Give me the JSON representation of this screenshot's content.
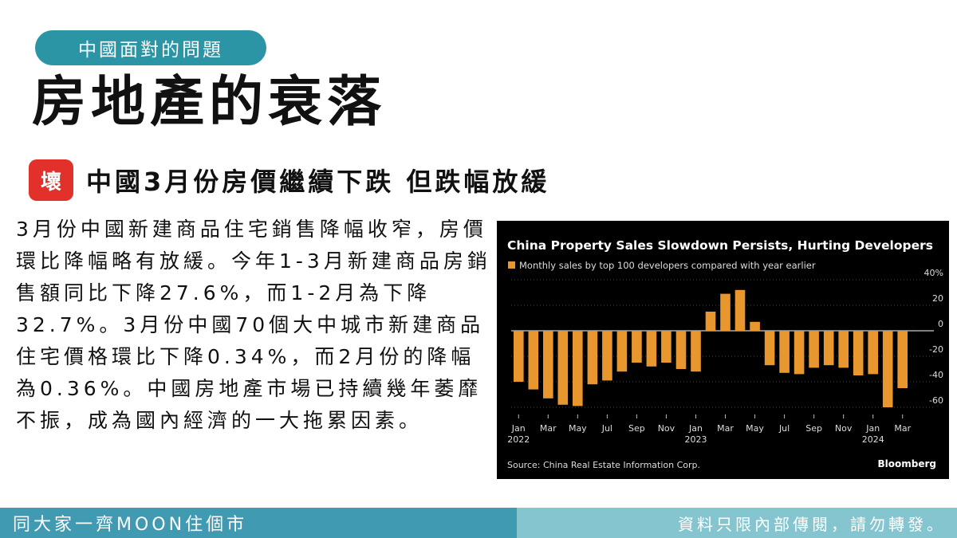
{
  "header": {
    "tag": "中國面對的問題",
    "title": "房地產的衰落",
    "badge": "壞",
    "subtitle": "中國3月份房價繼續下跌 但跌幅放緩"
  },
  "article": {
    "text": "3月份中國新建商品住宅銷售降幅收窄，房價環比降幅略有放緩。今年1-3月新建商品房銷售額同比下降27.6%，而1-2月為下降32.7%。3月份中國70個大中城市新建商品住宅價格環比下降0.34%，而2月份的降幅為0.36%。中國房地產市場已持續幾年萎靡不振，成為國內經濟的一大拖累因素。"
  },
  "footer": {
    "left": "同大家一齊MOON住個市",
    "right": "資料只限內部傳閱，請勿轉發。"
  },
  "chart_data": {
    "type": "bar",
    "title": "China Property Sales Slowdown Persists, Hurting Developers",
    "legend": "Monthly sales by top 100 developers compared with year earlier",
    "source": "Source: China Real Estate Information Corp.",
    "brand": "Bloomberg",
    "bar_color": "#e8962e",
    "ylim": [
      -60,
      40
    ],
    "yticks": [
      "40%",
      "20",
      "0",
      "-20",
      "-40",
      "-60"
    ],
    "ytick_values": [
      40,
      20,
      0,
      -20,
      -40,
      -60
    ],
    "xtick_labels": [
      {
        "label": "Jan",
        "year": "2022",
        "index": 0
      },
      {
        "label": "Mar",
        "year": "",
        "index": 2
      },
      {
        "label": "May",
        "year": "",
        "index": 4
      },
      {
        "label": "Jul",
        "year": "",
        "index": 6
      },
      {
        "label": "Sep",
        "year": "",
        "index": 8
      },
      {
        "label": "Nov",
        "year": "",
        "index": 10
      },
      {
        "label": "Jan",
        "year": "2023",
        "index": 12
      },
      {
        "label": "Mar",
        "year": "",
        "index": 14
      },
      {
        "label": "May",
        "year": "",
        "index": 16
      },
      {
        "label": "Jul",
        "year": "",
        "index": 18
      },
      {
        "label": "Sep",
        "year": "",
        "index": 20
      },
      {
        "label": "Nov",
        "year": "",
        "index": 22
      },
      {
        "label": "Jan",
        "year": "2024",
        "index": 24
      },
      {
        "label": "Mar",
        "year": "",
        "index": 26
      }
    ],
    "categories": [
      "2022-01",
      "2022-02",
      "2022-03",
      "2022-04",
      "2022-05",
      "2022-06",
      "2022-07",
      "2022-08",
      "2022-09",
      "2022-10",
      "2022-11",
      "2022-12",
      "2023-01",
      "2023-02",
      "2023-03",
      "2023-04",
      "2023-05",
      "2023-06",
      "2023-07",
      "2023-08",
      "2023-09",
      "2023-10",
      "2023-11",
      "2023-12",
      "2024-01",
      "2024-02",
      "2024-03"
    ],
    "values": [
      -40,
      -46,
      -53,
      -58,
      -59,
      -42,
      -39,
      -32,
      -25,
      -28,
      -25,
      -30,
      -32,
      15,
      29,
      32,
      7,
      -27,
      -33,
      -34,
      -29,
      -27,
      -29,
      -35,
      -34,
      -60,
      -45
    ]
  }
}
